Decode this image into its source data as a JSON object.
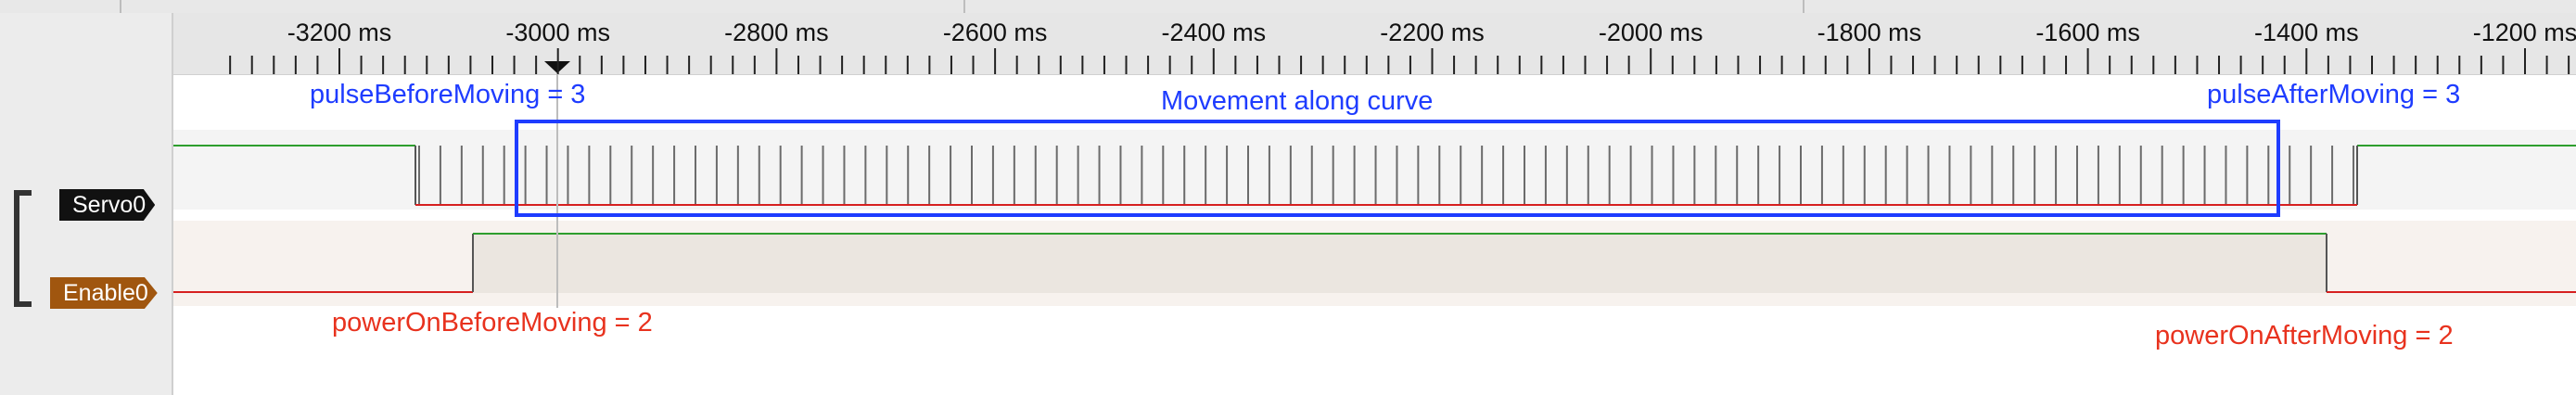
{
  "ruler": {
    "ticks": [
      {
        "label": "-3200 ms",
        "value": -3200
      },
      {
        "label": "-3000 ms",
        "value": -3000
      },
      {
        "label": "-2800 ms",
        "value": -2800
      },
      {
        "label": "-2600 ms",
        "value": -2600
      },
      {
        "label": "-2400 ms",
        "value": -2400
      },
      {
        "label": "-2200 ms",
        "value": -2200
      },
      {
        "label": "-2000 ms",
        "value": -2000
      },
      {
        "label": "-1800 ms",
        "value": -1800
      },
      {
        "label": "-1600 ms",
        "value": -1600
      },
      {
        "label": "-1400 ms",
        "value": -1400
      },
      {
        "label": "-1200 ms",
        "value": -1200
      }
    ]
  },
  "channels": {
    "servo": {
      "label": "Servo0",
      "color": "#111111"
    },
    "enable": {
      "label": "Enable0",
      "color": "#a0560f"
    }
  },
  "annotations": {
    "pulse_before": "pulseBeforeMoving = 3",
    "movement": "Movement along curve",
    "pulse_after": "pulseAfterMoving = 3",
    "power_before": "powerOnBeforeMoving = 2",
    "power_after": "powerOnAfterMoving = 2"
  },
  "colors": {
    "high": "#2e9e2e",
    "low": "#d62020",
    "annotation_blue": "#1e3cff",
    "annotation_red": "#e8321e",
    "cursor_marker": "#111111"
  }
}
